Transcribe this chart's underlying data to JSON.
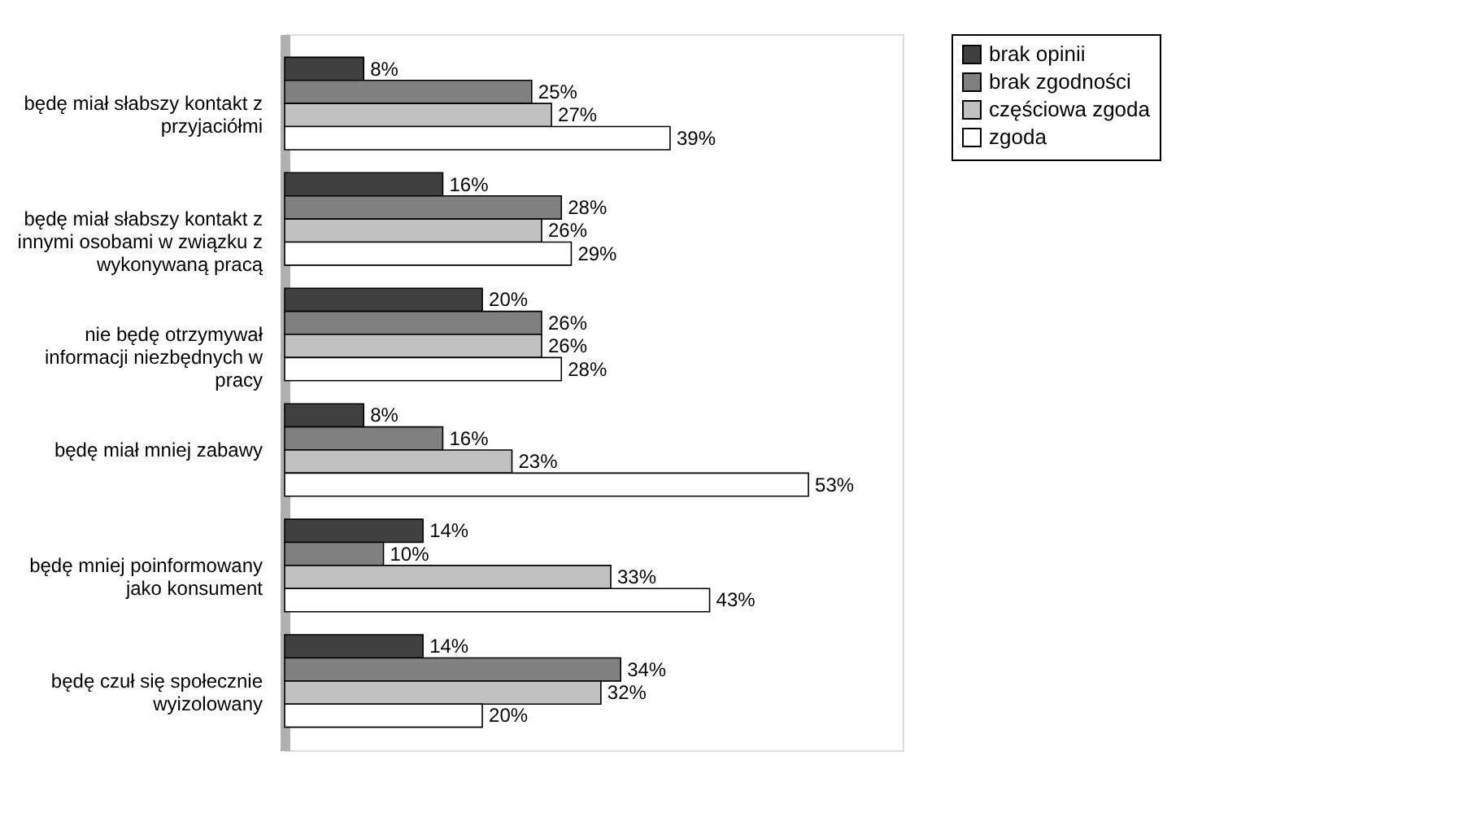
{
  "chart_data": {
    "type": "bar",
    "orientation": "horizontal",
    "legend": "right",
    "categories": [
      "będę miał słabszy kontakt z przyjaciółmi",
      "będę miał słabszy kontakt z innymi osobami w związku z wykonywaną pracą",
      "nie będę otrzymywał informacji niezbędnych w pracy",
      "będę miał mniej zabawy",
      "będę mniej poinformowany jako konsument",
      "będę czuł się społecznie wyizolowany"
    ],
    "series": [
      {
        "name": "brak opinii",
        "color": "#404040",
        "values": [
          8,
          16,
          20,
          8,
          14,
          14
        ],
        "value_labels": [
          "8%",
          "16%",
          "20%",
          "8%",
          "14%",
          "14%"
        ]
      },
      {
        "name": "brak zgodności",
        "color": "#808080",
        "values": [
          25,
          28,
          26,
          16,
          10,
          34
        ],
        "value_labels": [
          "25%",
          "28%",
          "26%",
          "16%",
          "10%",
          "34%"
        ]
      },
      {
        "name": "częściowa zgoda",
        "color": "#c0c0c0",
        "values": [
          27,
          26,
          26,
          23,
          33,
          32
        ],
        "value_labels": [
          "27%",
          "26%",
          "26%",
          "23%",
          "33%",
          "32%"
        ]
      },
      {
        "name": "zgoda",
        "color": "#ffffff",
        "values": [
          39,
          29,
          28,
          53,
          43,
          20
        ],
        "value_labels": [
          "39%",
          "29%",
          "28%",
          "53%",
          "43%",
          "20%"
        ]
      }
    ]
  }
}
